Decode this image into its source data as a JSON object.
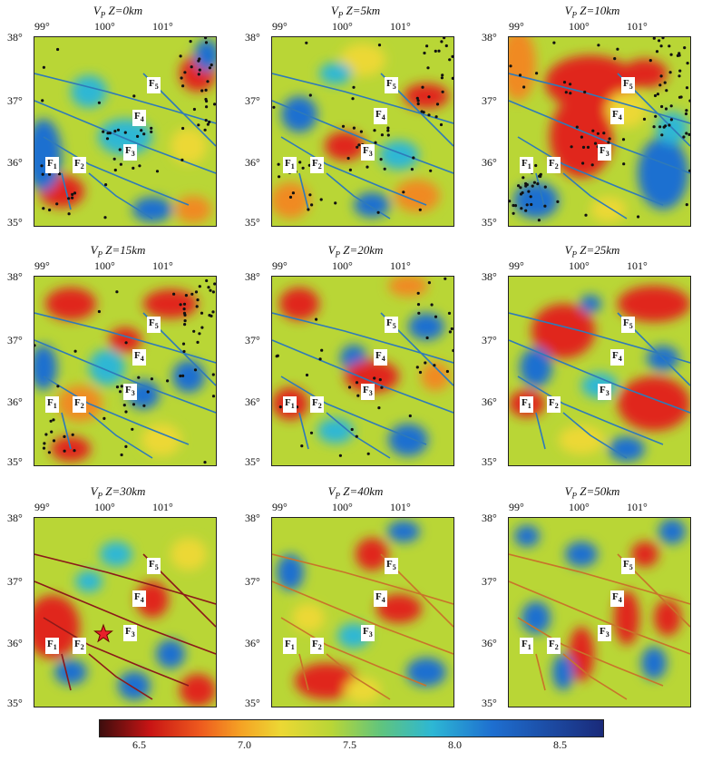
{
  "panels": [
    {
      "title_v": "V",
      "title_sub": "P",
      "title_depth": "Z=0km"
    },
    {
      "title_v": "V",
      "title_sub": "P",
      "title_depth": "Z=5km"
    },
    {
      "title_v": "V",
      "title_sub": "P",
      "title_depth": "Z=10km"
    },
    {
      "title_v": "V",
      "title_sub": "P",
      "title_depth": "Z=15km"
    },
    {
      "title_v": "V",
      "title_sub": "P",
      "title_depth": "Z=20km"
    },
    {
      "title_v": "V",
      "title_sub": "P",
      "title_depth": "Z=25km"
    },
    {
      "title_v": "V",
      "title_sub": "P",
      "title_depth": "Z=30km"
    },
    {
      "title_v": "V",
      "title_sub": "P",
      "title_depth": "Z=40km"
    },
    {
      "title_v": "V",
      "title_sub": "P",
      "title_depth": "Z=50km"
    }
  ],
  "lon_labels": [
    "99°",
    "100°",
    "101°"
  ],
  "lat_labels": [
    "38°",
    "37°",
    "36°",
    "35°"
  ],
  "faults": [
    {
      "f": "F",
      "n": "1"
    },
    {
      "f": "F",
      "n": "2"
    },
    {
      "f": "F",
      "n": "3"
    },
    {
      "f": "F",
      "n": "4"
    },
    {
      "f": "F",
      "n": "5"
    }
  ],
  "colorbar": {
    "ticks": [
      "6.5",
      "7.0",
      "7.5",
      "8.0",
      "8.5"
    ]
  },
  "colors": {
    "red": "#e0281c",
    "orange": "#f08a24",
    "yellow": "#ecd834",
    "green": "#b9d636",
    "cyan": "#2db7d4",
    "blue": "#1e6fd0",
    "darkblue": "#1a2a7a",
    "fault_blue": "#2f7ab8",
    "fault_red": "#8b1a1a"
  }
}
